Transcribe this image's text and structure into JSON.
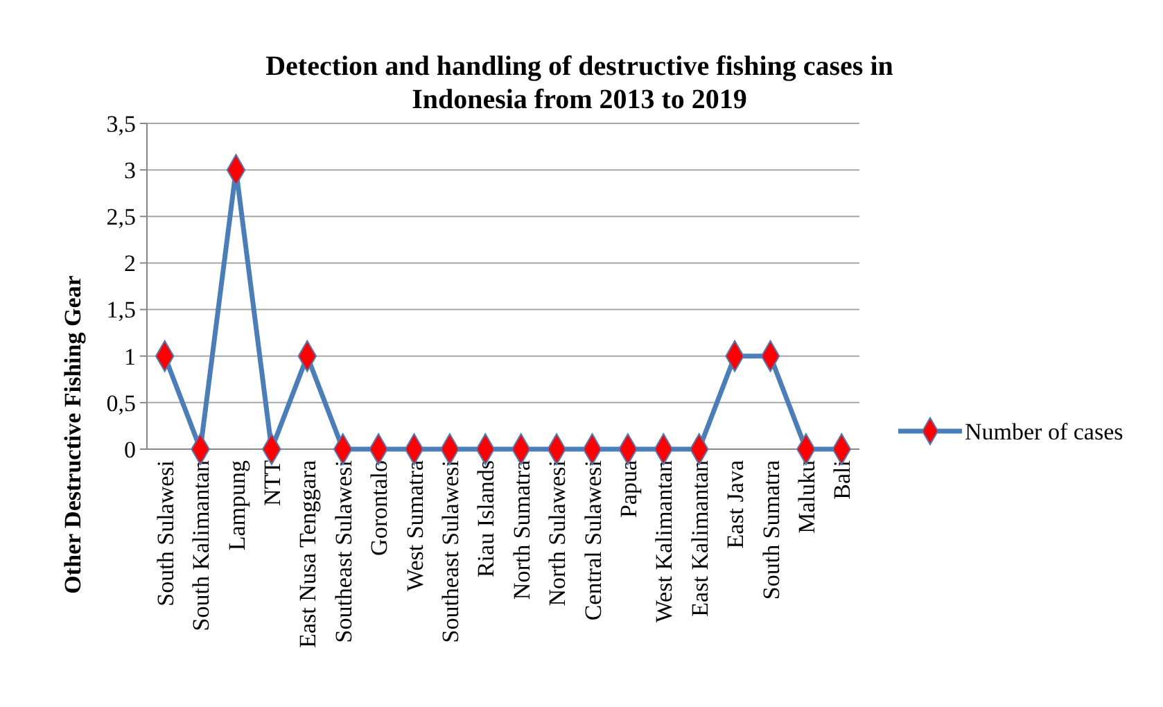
{
  "chart_data": {
    "type": "line",
    "title": "Detection and handling of destructive fishing cases in Indonesia from 2013 to 2019",
    "ylabel": "Other Destructive Fishing Gear",
    "categories": [
      "South Sulawesi",
      "South Kalimantan",
      "Lampung",
      "NTT",
      "East Nusa Tenggara",
      "Southeast Sulawesi",
      "Gorontalo",
      "West Sumatra",
      "Southeast Sulawesi",
      "Riau Islands",
      "North Sumatra",
      "North Sulawesi",
      "Central Sulawesi",
      "Papua",
      "West Kalimantan",
      "East Kalimantan",
      "East Java",
      "South Sumatra",
      "Maluku",
      "Bali"
    ],
    "series": [
      {
        "name": "Number of cases",
        "color": "#4a7ebb",
        "colors": [
          "#ff0000",
          "#ff0000",
          "#ff0000",
          "#ff0000",
          "#ff0000",
          "#ff0000",
          "#ff0000",
          "#ff0000",
          "#ff0000",
          "#ff0000",
          "#ff0000",
          "#ff0000",
          "#ff0000",
          "#ff0000",
          "#ff0000",
          "#ff0000",
          "#ff0000",
          "#ff0000",
          "#ff0000",
          "#ff0000"
        ],
        "values": [
          1,
          0,
          3,
          0,
          1,
          0,
          0,
          0,
          0,
          0,
          0,
          0,
          0,
          0,
          0,
          0,
          1,
          1,
          0,
          0
        ]
      }
    ],
    "ylim": [
      0,
      3.5
    ],
    "yticks": [
      0,
      {
        "value": 0.5,
        "label": "0,5"
      },
      1,
      {
        "value": 1.5,
        "label": "1,5"
      },
      2,
      {
        "value": 2.5,
        "label": "2,5"
      },
      3,
      {
        "value": 3.5,
        "label": "3,5"
      }
    ],
    "grid": "y",
    "legend": "right",
    "marker": "diamond",
    "line_style": "solid"
  }
}
